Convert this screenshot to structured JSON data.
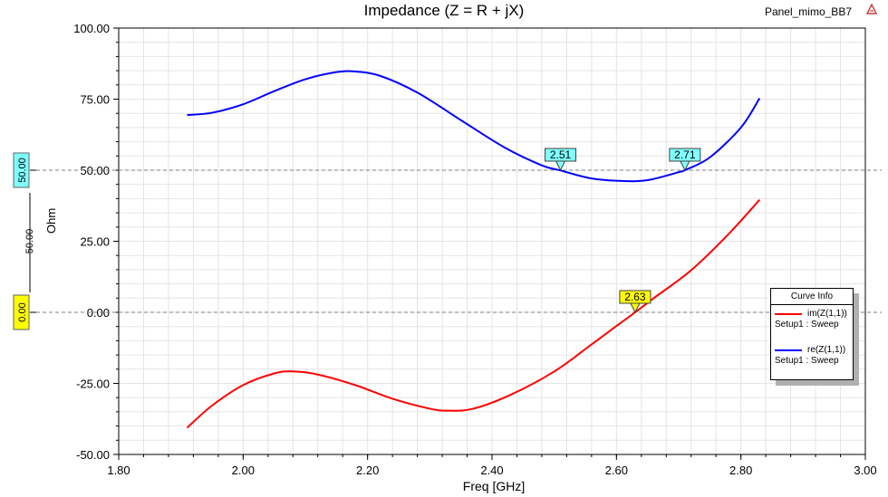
{
  "window": {
    "project_name": "Panel_mimo_BB7"
  },
  "chart_data": {
    "type": "line",
    "title": "Impedance (Z = R + jX)",
    "xlabel": "Freq [GHz]",
    "ylabel": "Ohm",
    "xlim": [
      1.8,
      3.0
    ],
    "ylim": [
      -50,
      100
    ],
    "x_ticks": [
      "1.80",
      "2.00",
      "2.20",
      "2.40",
      "2.60",
      "2.80",
      "3.00"
    ],
    "y_ticks": [
      "100.00",
      "75.00",
      "50.00",
      "25.00",
      "0.00",
      "-25.00",
      "-50.00"
    ],
    "grid": true,
    "series": [
      {
        "name": "re(Z(1,1))",
        "setup": "Setup1 : Sweep",
        "color": "#0000ff",
        "x": [
          1.91,
          1.95,
          2.0,
          2.05,
          2.1,
          2.15,
          2.18,
          2.22,
          2.28,
          2.35,
          2.42,
          2.48,
          2.51,
          2.56,
          2.61,
          2.65,
          2.7,
          2.71,
          2.75,
          2.8,
          2.83
        ],
        "y": [
          69.4,
          70.2,
          73.2,
          77.8,
          82.0,
          84.5,
          84.7,
          83.2,
          77.3,
          67.6,
          58.0,
          51.7,
          49.9,
          47.1,
          46.2,
          46.5,
          49.3,
          50.0,
          54.5,
          65.0,
          75.3
        ]
      },
      {
        "name": "im(Z(1,1))",
        "setup": "Setup1 : Sweep",
        "color": "#ff0000",
        "x": [
          1.91,
          1.95,
          2.0,
          2.05,
          2.08,
          2.12,
          2.18,
          2.24,
          2.3,
          2.33,
          2.37,
          2.43,
          2.5,
          2.56,
          2.6,
          2.63,
          2.66,
          2.72,
          2.78,
          2.83
        ],
        "y": [
          -40.6,
          -32.8,
          -25.6,
          -21.5,
          -20.8,
          -21.9,
          -25.6,
          -30.4,
          -33.9,
          -34.6,
          -33.9,
          -29.0,
          -20.8,
          -11.3,
          -4.8,
          0.0,
          5.0,
          14.8,
          27.5,
          39.6
        ]
      }
    ],
    "reference_lines": [
      50,
      0
    ],
    "markers": [
      {
        "label": "2.51",
        "x": 2.51,
        "y": 50.0,
        "color": "#80ffff"
      },
      {
        "label": "2.71",
        "x": 2.71,
        "y": 50.0,
        "color": "#80ffff"
      },
      {
        "label": "2.63",
        "x": 2.63,
        "y": 0.0,
        "color": "#ffff00"
      }
    ],
    "side_scale": {
      "ref_upper": "50.00",
      "span": "50.00",
      "ref_lower": "0.00"
    },
    "legend": {
      "title": "Curve Info",
      "position": "right"
    }
  }
}
